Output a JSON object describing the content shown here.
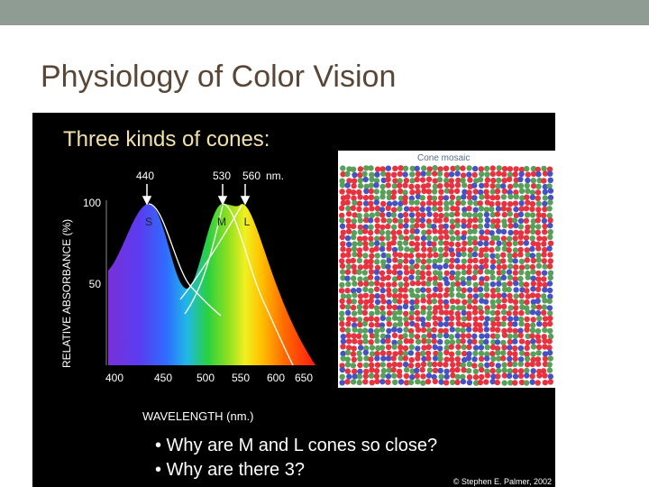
{
  "header": {
    "title": "Physiology of Color Vision"
  },
  "figure": {
    "heading": "Three kinds of cones:",
    "y_axis_label": "RELATIVE ABSORBANCE (%)",
    "y_ticks": [
      "100",
      "50"
    ],
    "x_ticks": [
      "400",
      "450",
      "500",
      "550",
      "600",
      "650"
    ],
    "x_axis_label": "WAVELENGTH (nm.)",
    "peaks": [
      "440",
      "530",
      "560"
    ],
    "peak_unit": "nm.",
    "curve_labels": [
      "S",
      "M",
      "L"
    ],
    "mosaic_title": "Cone mosaic",
    "bullets": [
      "• Why are M and L cones so close?",
      "• Why are there 3?"
    ],
    "credit": "© Stephen E. Palmer, 2002"
  }
}
